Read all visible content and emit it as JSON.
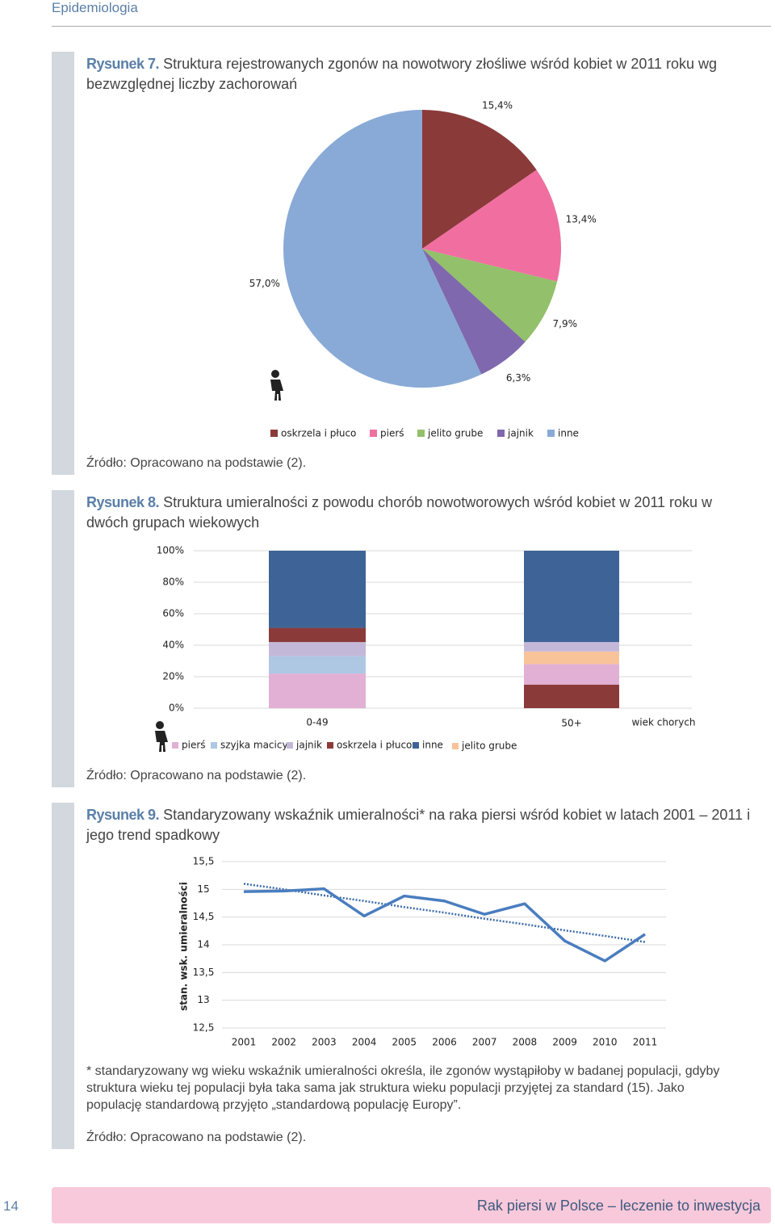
{
  "header": {
    "section": "Epidemiologia"
  },
  "chart_data": [
    {
      "type": "pie",
      "figure_label": "Rysunek 7.",
      "title": "Struktura rejestrowanych zgonów na nowotwory złośliwe wśród kobiet w 2011 roku wg bezwzględnej liczby zachorowań",
      "categories": [
        "oskrzela i płuco",
        "pierś",
        "jelito grube",
        "jajnik",
        "inne"
      ],
      "values": [
        15.4,
        13.4,
        7.9,
        6.3,
        57.0
      ],
      "value_labels": [
        "15,4%",
        "13,4%",
        "7,9%",
        "6,3%",
        "57,0%"
      ],
      "colors": [
        "#8b3a3a",
        "#f06fa0",
        "#93c06a",
        "#7f68ad",
        "#89aad6"
      ],
      "source": "Źródło: Opracowano na podstawie (2)."
    },
    {
      "type": "stacked-bar",
      "figure_label": "Rysunek 8.",
      "title": "Struktura umieralności z powodu chorób nowotworowych wśród kobiet w 2011 roku w dwóch grupach wiekowych",
      "categories": [
        "0-49",
        "50+"
      ],
      "xlabel": "wiek chorych",
      "series": [
        {
          "name": "pierś",
          "color": "#e1b0d4",
          "values": [
            22,
            13
          ]
        },
        {
          "name": "szyjka macicy",
          "color": "#aec7e3",
          "values": [
            11,
            null
          ]
        },
        {
          "name": "jajnik",
          "color": "#c4b8d8",
          "values": [
            9,
            6
          ]
        },
        {
          "name": "oskrzela i płuco",
          "color": "#8b3a3a",
          "values": [
            9,
            15
          ]
        },
        {
          "name": "inne",
          "color": "#3e6497",
          "values": [
            49,
            58
          ]
        },
        {
          "name": "jelito grube",
          "color": "#f9c39a",
          "values": [
            null,
            8
          ]
        }
      ],
      "ylim": [
        0,
        100
      ],
      "yticks": [
        {
          "value": 0,
          "label": "0%"
        },
        {
          "value": 20,
          "label": "20%"
        },
        {
          "value": 40,
          "label": "40%"
        },
        {
          "value": 60,
          "label": "60%"
        },
        {
          "value": 80,
          "label": "80%"
        },
        {
          "value": 100,
          "label": "100%"
        }
      ],
      "grid": true,
      "source": "Źródło: Opracowano na podstawie (2)."
    },
    {
      "type": "line",
      "figure_label": "Rysunek 9.",
      "title": "Standaryzowany wskaźnik umieralności* na raka piersi wśród kobiet w latach 2001 – 2011 i jego trend spadkowy",
      "categories": [
        "2001",
        "2002",
        "2003",
        "2004",
        "2005",
        "2006",
        "2007",
        "2008",
        "2009",
        "2010",
        "2011"
      ],
      "values": [
        14.96,
        14.97,
        15.01,
        14.52,
        14.88,
        14.79,
        14.55,
        14.74,
        14.07,
        13.71,
        14.19
      ],
      "color": "#4a7dbf",
      "trend": {
        "color": "#3a6aa8",
        "values": [
          15.1,
          15.0,
          14.89,
          14.79,
          14.68,
          14.58,
          14.47,
          14.37,
          14.26,
          14.16,
          14.05
        ]
      },
      "ylabel": "stan. wsk. umieralności",
      "ylim": [
        12.5,
        15.5
      ],
      "yticks": [
        {
          "value": 12.5,
          "label": "12,5"
        },
        13,
        {
          "value": 13.5,
          "label": "13,5"
        },
        14,
        {
          "value": 14.5,
          "label": "14,5"
        },
        15,
        {
          "value": 15.5,
          "label": "15,5"
        }
      ],
      "grid": true,
      "footnote": "* standaryzowany wg wieku wskaźnik umieralności określa, ile zgonów wystąpiłoby w badanej populacji, gdyby struktura wieku tej populacji była taka sama jak struktura wieku populacji przyjętej za standard (15). Jako populację standardową przyjęto „standardową populację Europy”.",
      "source": "Źródło: Opracowano na podstawie (2)."
    }
  ],
  "footer": {
    "page": "14",
    "title": "Rak piersi w Polsce – leczenie to inwestycja"
  }
}
